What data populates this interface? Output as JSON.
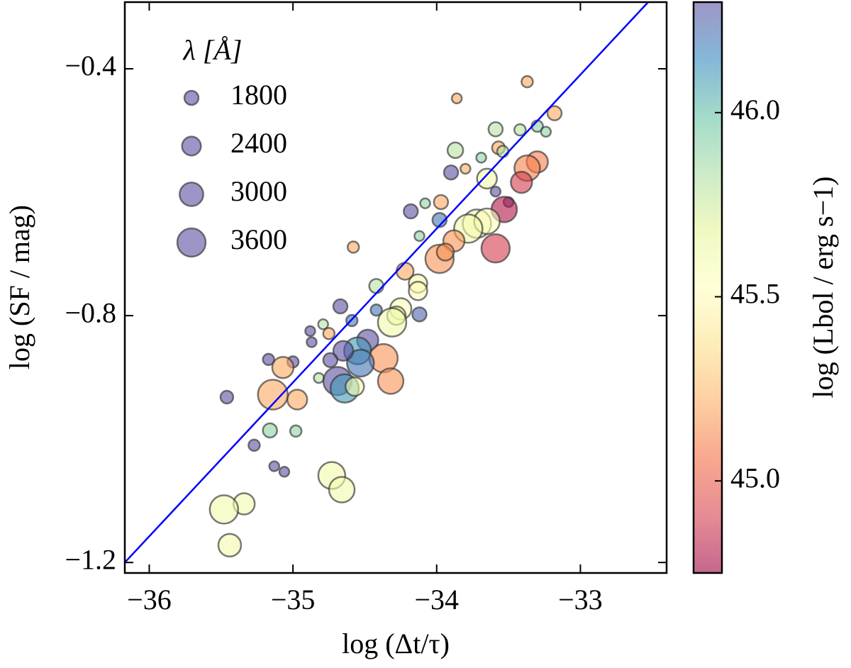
{
  "chart_data": {
    "type": "scatter",
    "xlabel": "log (Δt/τ)",
    "ylabel": "log (SF / mag)",
    "xlim": [
      -36.17,
      -32.4
    ],
    "ylim": [
      -1.217,
      -0.292
    ],
    "xticks": [
      {
        "value": -36,
        "label": "−36"
      },
      {
        "value": -35,
        "label": "−35"
      },
      {
        "value": -34,
        "label": "−34"
      },
      {
        "value": -33,
        "label": "−33"
      }
    ],
    "yticks": [
      {
        "value": -0.4,
        "label": "−0.4"
      },
      {
        "value": -0.8,
        "label": "−0.8"
      },
      {
        "value": -1.2,
        "label": "−1.2"
      }
    ],
    "points": {
      "x": [
        -33.37,
        -33.86,
        -33.18,
        -33.59,
        -33.42,
        -33.3,
        -33.24,
        -33.87,
        -33.57,
        -33.54,
        -33.69,
        -33.3,
        -33.37,
        -33.8,
        -33.9,
        -33.65,
        -33.41,
        -33.59,
        -33.5,
        -33.97,
        -34.08,
        -33.53,
        -34.18,
        -33.98,
        -33.72,
        -33.65,
        -33.78,
        -34.12,
        -33.88,
        -33.98,
        -34.58,
        -33.94,
        -33.59,
        -34.22,
        -34.13,
        -34.42,
        -34.13,
        -34.25,
        -34.28,
        -34.12,
        -34.31,
        -34.42,
        -34.67,
        -34.59,
        -34.79,
        -34.88,
        -34.75,
        -34.87,
        -34.48,
        -34.55,
        -34.37,
        -34.53,
        -34.65,
        -34.74,
        -35.0,
        -34.82,
        -34.69,
        -34.64,
        -34.32,
        -34.57,
        -35.17,
        -35.07,
        -34.97,
        -35.14,
        -35.46,
        -35.16,
        -34.98,
        -35.27,
        -35.13,
        -35.06,
        -34.73,
        -34.66,
        -35.34,
        -35.48,
        -35.44
      ],
      "y": [
        -0.421,
        -0.448,
        -0.472,
        -0.498,
        -0.499,
        -0.493,
        -0.502,
        -0.532,
        -0.528,
        -0.534,
        -0.544,
        -0.551,
        -0.561,
        -0.562,
        -0.568,
        -0.578,
        -0.584,
        -0.599,
        -0.616,
        -0.616,
        -0.618,
        -0.628,
        -0.631,
        -0.645,
        -0.651,
        -0.647,
        -0.659,
        -0.671,
        -0.679,
        -0.708,
        -0.689,
        -0.697,
        -0.691,
        -0.728,
        -0.748,
        -0.752,
        -0.76,
        -0.789,
        -0.8,
        -0.798,
        -0.811,
        -0.791,
        -0.785,
        -0.808,
        -0.814,
        -0.825,
        -0.829,
        -0.843,
        -0.84,
        -0.857,
        -0.869,
        -0.877,
        -0.857,
        -0.872,
        -0.875,
        -0.901,
        -0.906,
        -0.918,
        -0.906,
        -0.915,
        -0.871,
        -0.884,
        -0.936,
        -0.928,
        -0.932,
        -0.986,
        -0.987,
        -1.01,
        -1.044,
        -1.053,
        -1.059,
        -1.082,
        -1.105,
        -1.114,
        -1.172
      ],
      "wavelength": [
        1440,
        1260,
        1800,
        1800,
        1440,
        1440,
        1260,
        1980,
        1620,
        1440,
        1260,
        2700,
        3240,
        1260,
        1800,
        2520,
        2700,
        1260,
        1260,
        1800,
        1260,
        3240,
        1800,
        1800,
        3600,
        3240,
        3600,
        1260,
        2700,
        3600,
        1440,
        2160,
        3600,
        2160,
        2340,
        1800,
        2340,
        2700,
        2340,
        1800,
        3600,
        1440,
        1800,
        1440,
        1260,
        1260,
        1440,
        1260,
        2700,
        3420,
        3600,
        3420,
        2520,
        1800,
        1440,
        1260,
        3600,
        3600,
        3240,
        2340,
        1440,
        2700,
        2520,
        3780,
        1620,
        1800,
        1440,
        1440,
        1260,
        1260,
        3420,
        3240,
        2700,
        3600,
        2880
      ],
      "lbol": [
        45.2,
        45.2,
        45.2,
        45.8,
        45.8,
        45.9,
        45.9,
        45.8,
        45.2,
        45.8,
        45.9,
        45.1,
        45.1,
        45.2,
        46.3,
        45.6,
        44.9,
        46.3,
        46.3,
        45.2,
        45.9,
        44.8,
        46.3,
        46.2,
        45.6,
        45.55,
        45.6,
        45.9,
        45.15,
        45.15,
        45.2,
        45.15,
        44.9,
        45.2,
        45.6,
        45.8,
        45.5,
        45.55,
        45.6,
        46.25,
        45.6,
        46.2,
        46.3,
        46.2,
        45.8,
        46.3,
        45.2,
        46.3,
        46.3,
        46.1,
        45.15,
        46.2,
        46.3,
        46.3,
        46.3,
        45.8,
        46.3,
        46.1,
        45.15,
        45.6,
        46.3,
        45.2,
        45.2,
        45.2,
        46.3,
        45.9,
        45.9,
        46.3,
        46.3,
        46.3,
        45.6,
        45.6,
        45.6,
        45.6,
        45.6
      ]
    },
    "fit_line": {
      "x": [
        -36.17,
        -32.4
      ],
      "y": [
        -1.2,
        -0.26
      ],
      "color": "#0000ff"
    },
    "legend": {
      "title": "λ [Å]",
      "sizes": [
        1800,
        2400,
        3000,
        3600
      ],
      "color": "#5e4fa2"
    },
    "colorbar": {
      "label": "log (Lbol / erg s−1)",
      "clim": [
        44.75,
        46.3
      ],
      "ticks": [
        {
          "value": 45,
          "label": "45.0"
        },
        {
          "value": 45.5,
          "label": "45.5"
        },
        {
          "value": 46,
          "label": "46.0"
        }
      ],
      "colormap": [
        "#9e0142",
        "#d53e4f",
        "#f46d43",
        "#fdae61",
        "#fee08b",
        "#ffffbf",
        "#e6f598",
        "#abdda4",
        "#66c2a5",
        "#3288bd",
        "#5e4fa2"
      ],
      "alpha": 0.6
    }
  }
}
